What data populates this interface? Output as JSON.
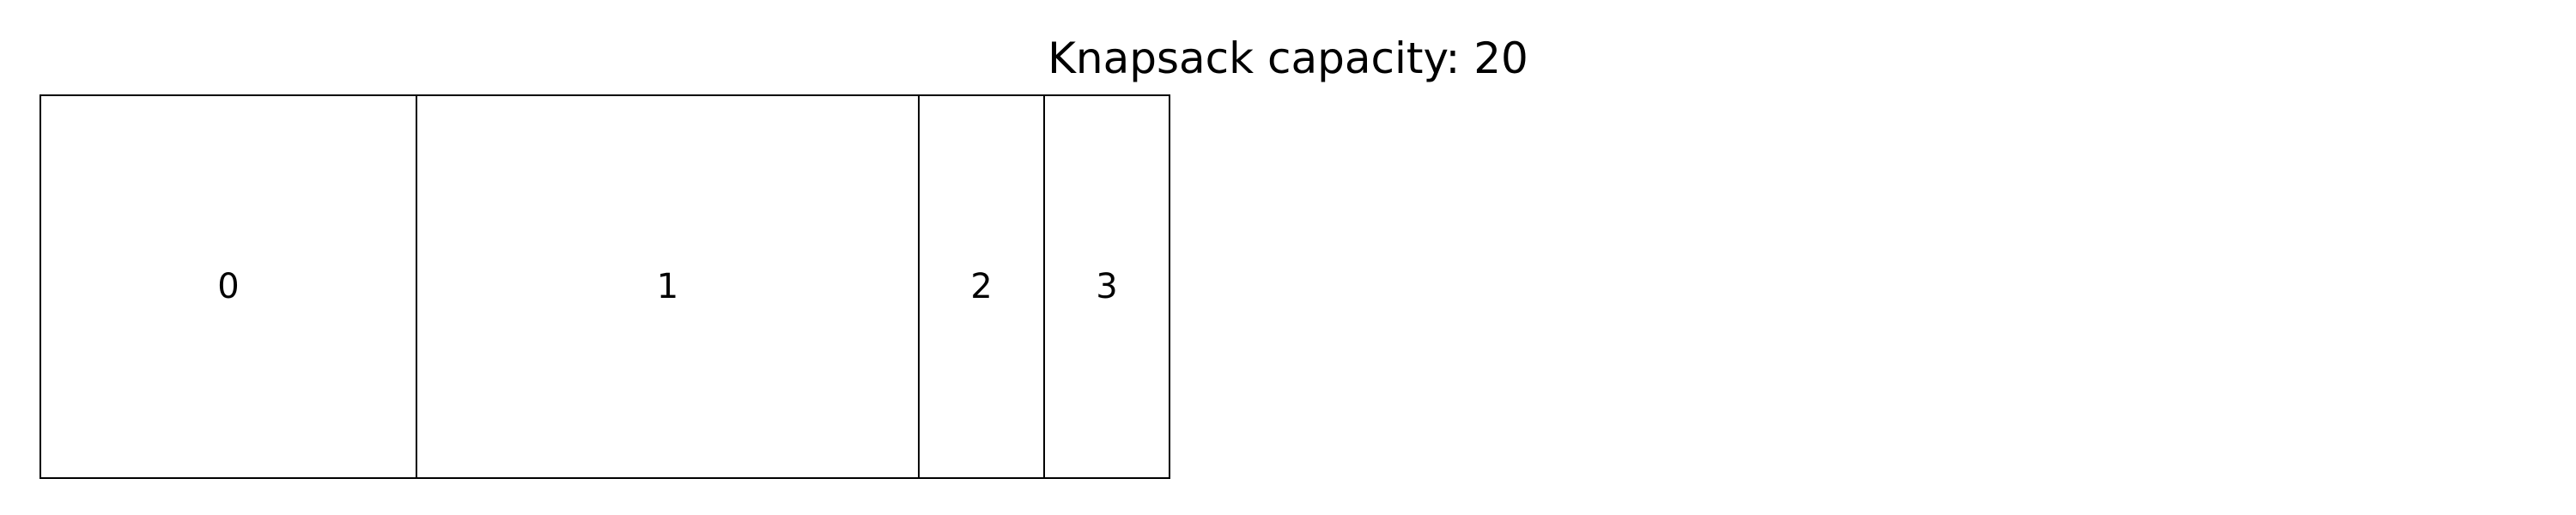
{
  "title": "Knapsack capacity: 20",
  "items": [
    {
      "label": "0"
    },
    {
      "label": "1"
    },
    {
      "label": "2"
    },
    {
      "label": "3"
    }
  ],
  "colors": {
    "border": "#000000",
    "fill": "#ffffff",
    "text": "#000000"
  }
}
